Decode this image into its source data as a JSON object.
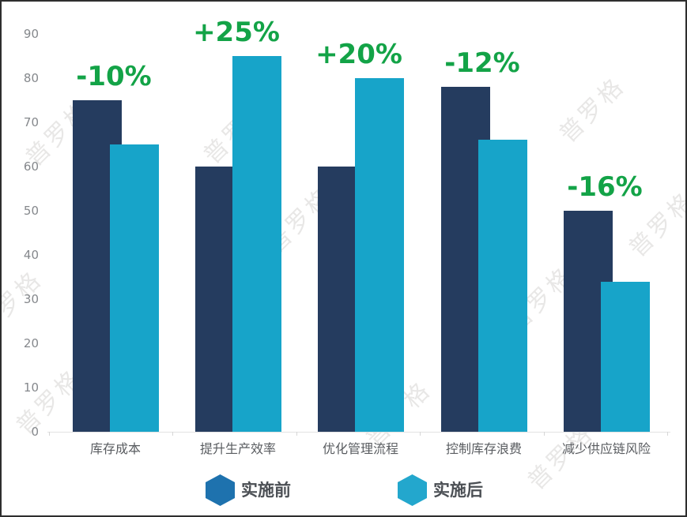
{
  "chart_data": {
    "type": "bar",
    "title": "",
    "categories": [
      "库存成本",
      "提升生产效率",
      "优化管理流程",
      "控制库存浪费",
      "减少供应链风险"
    ],
    "series": [
      {
        "name": "实施前",
        "color": "#253c5f",
        "values": [
          75,
          60,
          60,
          78,
          50
        ]
      },
      {
        "name": "实施后",
        "color": "#17a4c9",
        "values": [
          65,
          85,
          80,
          66,
          34
        ]
      }
    ],
    "change_labels": [
      "-10%",
      "+25%",
      "+20%",
      "-12%",
      "-16%"
    ],
    "change_label_color": "#13a347",
    "y_ticks": [
      0,
      10,
      20,
      30,
      40,
      50,
      60,
      70,
      80,
      90
    ],
    "ylim": [
      0,
      90
    ],
    "xlabel": "",
    "ylabel": "",
    "grid": false,
    "legend_position": "bottom"
  },
  "legend": {
    "items": [
      {
        "label": "实施前",
        "marker": "hexagon-icon",
        "color": "#1e72ae"
      },
      {
        "label": "实施后",
        "marker": "hexagon-icon",
        "color": "#23a7cd"
      }
    ]
  },
  "watermark": {
    "text": "普罗格"
  }
}
